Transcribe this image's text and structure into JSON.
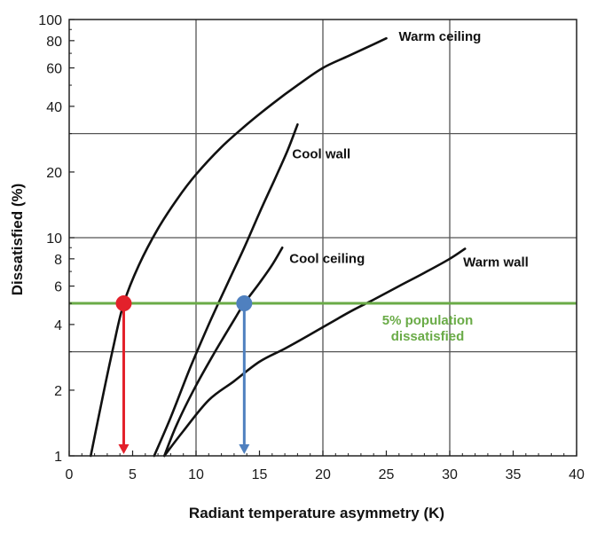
{
  "chart_data": {
    "type": "line",
    "xlabel": "Radiant temperature asymmetry (K)",
    "ylabel": "Dissatisfied (%)",
    "xlim": [
      0,
      40
    ],
    "ylim": [
      1,
      100
    ],
    "yscale": "log",
    "x_ticks": [
      "0",
      "5",
      "10",
      "15",
      "20",
      "25",
      "30",
      "35",
      "40"
    ],
    "y_ticks": [
      "1",
      "2",
      "4",
      "6",
      "8",
      "10",
      "20",
      "40",
      "60",
      "80",
      "100"
    ],
    "vertical_gridlines_at": [
      10,
      20,
      30
    ],
    "horizontal_gridlines_at": [
      3,
      10,
      30
    ],
    "series": [
      {
        "name": "Warm ceiling",
        "x": [
          1.7,
          2.5,
          3.5,
          4.3,
          5.5,
          7,
          8.5,
          10,
          12,
          14,
          16,
          18,
          20,
          22,
          24,
          25
        ],
        "y": [
          1,
          1.7,
          3.2,
          5,
          7.5,
          11,
          15,
          19.5,
          26,
          33,
          41,
          50,
          60,
          68,
          77,
          82
        ]
      },
      {
        "name": "Cool wall",
        "x": [
          6.7,
          8,
          9.5,
          11,
          12.5,
          13.8,
          15,
          16.2,
          17.2,
          18
        ],
        "y": [
          1,
          1.5,
          2.5,
          4,
          6.2,
          9,
          13,
          18.5,
          25,
          33
        ]
      },
      {
        "name": "Cool ceiling",
        "x": [
          7.5,
          8.5,
          10,
          11.5,
          13,
          13.8,
          15,
          16,
          16.8
        ],
        "y": [
          1,
          1.4,
          2.1,
          3,
          4.2,
          5,
          6.2,
          7.5,
          9
        ]
      },
      {
        "name": "Warm wall",
        "x": [
          7.5,
          9,
          11,
          13,
          15,
          17,
          19,
          21,
          22.5,
          24,
          26,
          28,
          30,
          31.2
        ],
        "y": [
          1,
          1.3,
          1.8,
          2.2,
          2.7,
          3.1,
          3.6,
          4.2,
          4.7,
          5.2,
          6,
          6.9,
          8,
          8.9
        ]
      }
    ],
    "threshold": {
      "y": 5,
      "label_lines": [
        "5% population",
        "dissatisfied"
      ],
      "color": "#6aab47"
    },
    "markers": [
      {
        "x": 4.3,
        "y": 5,
        "color": "#e3212b"
      },
      {
        "x": 13.8,
        "y": 5,
        "color": "#4f80bf"
      }
    ]
  }
}
